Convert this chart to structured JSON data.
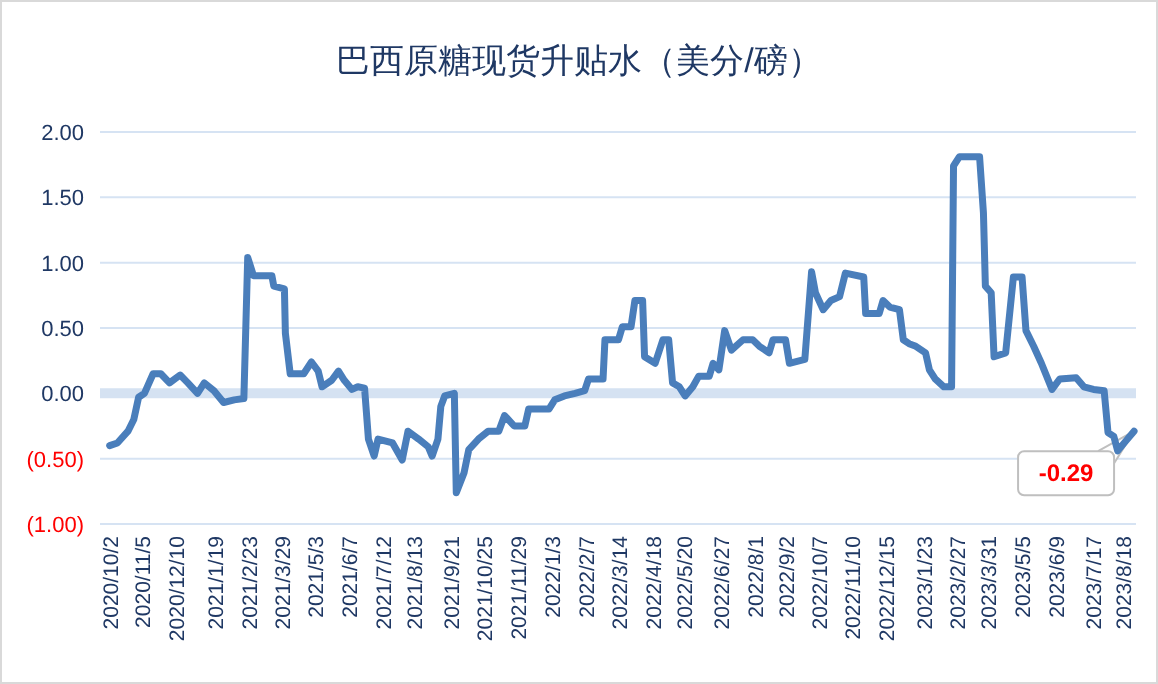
{
  "chart_data": {
    "type": "line",
    "title": "巴西原糖现货升贴水（美分/磅）",
    "x": [
      "2020-10-02",
      "2020-10-10",
      "2020-10-21",
      "2020-10-27",
      "2020-11-01",
      "2020-11-07",
      "2020-11-16",
      "2020-11-24",
      "2020-12-03",
      "2020-12-14",
      "2020-12-22",
      "2021-01-01",
      "2021-01-08",
      "2021-01-18",
      "2021-01-28",
      "2021-02-08",
      "2021-02-18",
      "2021-02-22",
      "2021-02-28",
      "2021-03-19",
      "2021-03-21",
      "2021-04-01",
      "2021-04-02",
      "2021-04-07",
      "2021-04-21",
      "2021-04-29",
      "2021-05-06",
      "2021-05-10",
      "2021-05-20",
      "2021-05-27",
      "2021-06-02",
      "2021-06-10",
      "2021-06-16",
      "2021-06-23",
      "2021-06-27",
      "2021-07-03",
      "2021-07-07",
      "2021-07-22",
      "2021-08-01",
      "2021-08-07",
      "2021-08-18",
      "2021-08-28",
      "2021-09-01",
      "2021-09-07",
      "2021-09-10",
      "2021-09-14",
      "2021-09-24",
      "2021-09-26",
      "2021-10-04",
      "2021-10-09",
      "2021-10-19",
      "2021-10-29",
      "2021-11-09",
      "2021-11-15",
      "2021-11-25",
      "2021-12-06",
      "2021-12-10",
      "2021-12-31",
      "2022-01-06",
      "2022-01-16",
      "2022-01-27",
      "2022-02-06",
      "2022-02-10",
      "2022-02-25",
      "2022-02-27",
      "2022-03-13",
      "2022-03-17",
      "2022-03-26",
      "2022-03-30",
      "2022-04-07",
      "2022-04-09",
      "2022-04-20",
      "2022-04-28",
      "2022-05-04",
      "2022-05-08",
      "2022-05-15",
      "2022-05-21",
      "2022-05-29",
      "2022-06-04",
      "2022-06-15",
      "2022-06-19",
      "2022-06-25",
      "2022-07-01",
      "2022-07-08",
      "2022-07-20",
      "2022-07-30",
      "2022-08-06",
      "2022-08-16",
      "2022-08-20",
      "2022-09-02",
      "2022-09-06",
      "2022-09-22",
      "2022-09-29",
      "2022-10-03",
      "2022-10-11",
      "2022-10-19",
      "2022-10-28",
      "2022-11-03",
      "2022-11-22",
      "2022-11-24",
      "2022-12-08",
      "2022-12-12",
      "2022-12-19",
      "2022-12-29",
      "2023-01-02",
      "2023-01-08",
      "2023-01-15",
      "2023-01-25",
      "2023-01-29",
      "2023-02-04",
      "2023-02-13",
      "2023-02-21",
      "2023-02-23",
      "2023-03-01",
      "2023-03-22",
      "2023-03-26",
      "2023-03-28",
      "2023-04-03",
      "2023-04-06",
      "2023-04-18",
      "2023-04-26",
      "2023-05-05",
      "2023-05-09",
      "2023-05-17",
      "2023-05-25",
      "2023-06-05",
      "2023-06-13",
      "2023-06-30",
      "2023-07-08",
      "2023-07-18",
      "2023-07-29",
      "2023-08-02",
      "2023-08-08",
      "2023-08-12",
      "2023-08-21",
      "2023-08-29"
    ],
    "series": [
      {
        "color": "#4a7ebb",
        "values": [
          -0.4,
          -0.38,
          -0.29,
          -0.2,
          -0.03,
          0.0,
          0.15,
          0.15,
          0.08,
          0.14,
          0.08,
          0.0,
          0.08,
          0.02,
          -0.07,
          -0.05,
          -0.04,
          1.04,
          0.9,
          0.9,
          0.82,
          0.8,
          0.46,
          0.15,
          0.15,
          0.24,
          0.17,
          0.05,
          0.1,
          0.17,
          0.1,
          0.03,
          0.05,
          0.04,
          -0.35,
          -0.48,
          -0.35,
          -0.38,
          -0.51,
          -0.29,
          -0.35,
          -0.41,
          -0.48,
          -0.35,
          -0.1,
          -0.02,
          0.0,
          -0.76,
          -0.61,
          -0.43,
          -0.35,
          -0.29,
          -0.29,
          -0.17,
          -0.25,
          -0.25,
          -0.12,
          -0.12,
          -0.05,
          -0.02,
          0.0,
          0.02,
          0.11,
          0.11,
          0.41,
          0.41,
          0.51,
          0.51,
          0.71,
          0.71,
          0.28,
          0.23,
          0.41,
          0.41,
          0.08,
          0.05,
          -0.02,
          0.05,
          0.13,
          0.13,
          0.23,
          0.18,
          0.48,
          0.33,
          0.41,
          0.41,
          0.36,
          0.31,
          0.41,
          0.41,
          0.23,
          0.26,
          0.93,
          0.77,
          0.64,
          0.71,
          0.74,
          0.92,
          0.89,
          0.61,
          0.61,
          0.71,
          0.66,
          0.64,
          0.41,
          0.38,
          0.36,
          0.31,
          0.18,
          0.11,
          0.05,
          0.05,
          1.74,
          1.81,
          1.81,
          1.38,
          0.82,
          0.77,
          0.28,
          0.31,
          0.89,
          0.89,
          0.48,
          0.36,
          0.23,
          0.03,
          0.11,
          0.12,
          0.05,
          0.03,
          0.02,
          -0.3,
          -0.33,
          -0.44,
          -0.36,
          -0.29
        ]
      }
    ],
    "xlim": [
      "2020-09-22",
      "2023-08-31"
    ],
    "xticks": [
      {
        "value": "2020-10-02",
        "label": "2020/10/2"
      },
      {
        "value": "2020-11-05",
        "label": "2020/11/5"
      },
      {
        "value": "2020-12-10",
        "label": "2020/12/10"
      },
      {
        "value": "2021-01-19",
        "label": "2021/1/19"
      },
      {
        "value": "2021-02-23",
        "label": "2021/2/23"
      },
      {
        "value": "2021-03-29",
        "label": "2021/3/29"
      },
      {
        "value": "2021-05-03",
        "label": "2021/5/3"
      },
      {
        "value": "2021-06-07",
        "label": "2021/6/7"
      },
      {
        "value": "2021-07-12",
        "label": "2021/7/12"
      },
      {
        "value": "2021-08-13",
        "label": "2021/8/13"
      },
      {
        "value": "2021-09-21",
        "label": "2021/9/21"
      },
      {
        "value": "2021-10-25",
        "label": "2021/10/25"
      },
      {
        "value": "2021-11-29",
        "label": "2021/11/29"
      },
      {
        "value": "2022-01-03",
        "label": "2022/1/3"
      },
      {
        "value": "2022-02-07",
        "label": "2022/2/7"
      },
      {
        "value": "2022-03-14",
        "label": "2022/3/14"
      },
      {
        "value": "2022-04-18",
        "label": "2022/4/18"
      },
      {
        "value": "2022-05-20",
        "label": "2022/5/20"
      },
      {
        "value": "2022-06-27",
        "label": "2022/6/27"
      },
      {
        "value": "2022-08-01",
        "label": "2022/8/1"
      },
      {
        "value": "2022-09-02",
        "label": "2022/9/2"
      },
      {
        "value": "2022-10-07",
        "label": "2022/10/7"
      },
      {
        "value": "2022-11-10",
        "label": "2022/11/10"
      },
      {
        "value": "2022-12-15",
        "label": "2022/12/15"
      },
      {
        "value": "2023-01-23",
        "label": "2023/1/23"
      },
      {
        "value": "2023-02-27",
        "label": "2023/2/27"
      },
      {
        "value": "2023-03-31",
        "label": "2023/3/31"
      },
      {
        "value": "2023-05-05",
        "label": "2023/5/5"
      },
      {
        "value": "2023-06-09",
        "label": "2023/6/9"
      },
      {
        "value": "2023-07-17",
        "label": "2023/7/17"
      },
      {
        "value": "2023-08-18",
        "label": "2023/8/18"
      }
    ],
    "ylim": [
      -1.0,
      2.0
    ],
    "yticks": [
      {
        "value": 2,
        "label": "2.00"
      },
      {
        "value": 1.5,
        "label": "1.50"
      },
      {
        "value": 1,
        "label": "1.00"
      },
      {
        "value": 0.5,
        "label": "0.50"
      },
      {
        "value": 0,
        "label": "0.00"
      },
      {
        "value": -0.5,
        "label": "(0.50)"
      },
      {
        "value": -1,
        "label": "(1.00)"
      }
    ],
    "grid": "y",
    "ref_lines": [
      {
        "axis": "y",
        "value": 0,
        "color": "#d5e2f2"
      }
    ],
    "annotations": [
      {
        "text": "-0.29",
        "x": "2023-08-29",
        "y": -0.29
      }
    ]
  }
}
